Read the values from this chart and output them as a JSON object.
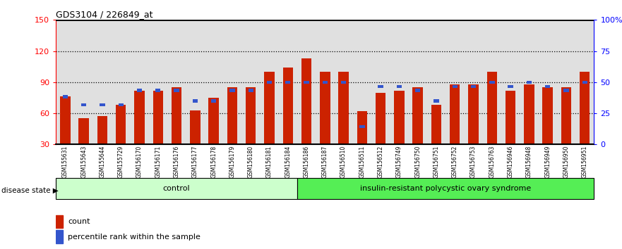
{
  "title": "GDS3104 / 226849_at",
  "samples": [
    "GSM155631",
    "GSM155643",
    "GSM155644",
    "GSM155729",
    "GSM156170",
    "GSM156171",
    "GSM156176",
    "GSM156177",
    "GSM156178",
    "GSM156179",
    "GSM156180",
    "GSM156181",
    "GSM156184",
    "GSM156186",
    "GSM156187",
    "GSM156510",
    "GSM156511",
    "GSM156512",
    "GSM156749",
    "GSM156750",
    "GSM156751",
    "GSM156752",
    "GSM156753",
    "GSM156763",
    "GSM156946",
    "GSM156948",
    "GSM156949",
    "GSM156950",
    "GSM156951"
  ],
  "counts": [
    76,
    55,
    57,
    68,
    82,
    82,
    85,
    63,
    75,
    85,
    85,
    100,
    104,
    113,
    100,
    100,
    62,
    80,
    82,
    85,
    68,
    88,
    88,
    100,
    82,
    88,
    85,
    85,
    100
  ],
  "percentile_left_vals": [
    76,
    68,
    68,
    68,
    82,
    82,
    82,
    72,
    72,
    82,
    82,
    90,
    90,
    90,
    90,
    90,
    47,
    86,
    86,
    82,
    72,
    86,
    86,
    90,
    86,
    90,
    86,
    82,
    90
  ],
  "control_count": 13,
  "disease_label": "control",
  "syndrome_label": "insulin-resistant polycystic ovary syndrome",
  "bar_color": "#cc2200",
  "percentile_color": "#3355cc",
  "ylim_left": [
    30,
    150
  ],
  "ylim_right": [
    0,
    100
  ],
  "yticks_left": [
    30,
    60,
    90,
    120,
    150
  ],
  "yticks_right": [
    0,
    25,
    50,
    75,
    100
  ],
  "ytick_labels_right": [
    "0",
    "25",
    "50",
    "75",
    "100%"
  ],
  "control_bg": "#ccffcc",
  "syndrome_bg": "#55ee55",
  "background_color": "#e0e0e0",
  "dotted_lines": [
    60,
    90,
    120
  ]
}
